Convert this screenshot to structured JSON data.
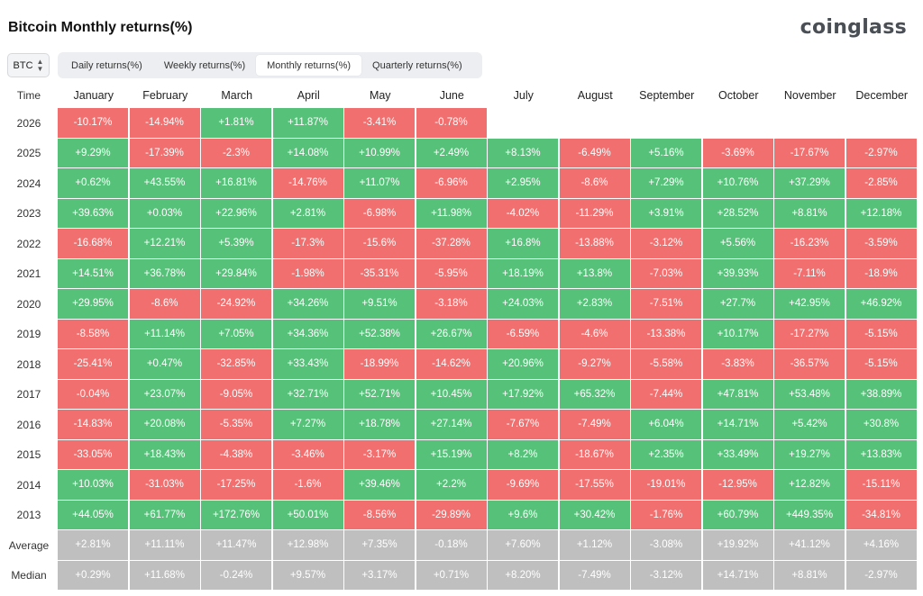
{
  "header": {
    "title": "Bitcoin Monthly returns(%)",
    "brand": "coinglass",
    "asset": "BTC"
  },
  "tabs": [
    {
      "label": "Daily returns(%)",
      "active": false
    },
    {
      "label": "Weekly returns(%)",
      "active": false
    },
    {
      "label": "Monthly returns(%)",
      "active": true
    },
    {
      "label": "Quarterly returns(%)",
      "active": false
    }
  ],
  "colors": {
    "positive": "#56c279",
    "negative": "#f26f6f",
    "summary": "#bfbfbf"
  },
  "table": {
    "time_label": "Time",
    "months": [
      "January",
      "February",
      "March",
      "April",
      "May",
      "June",
      "July",
      "August",
      "September",
      "October",
      "November",
      "December"
    ],
    "rows": [
      {
        "year": "2026",
        "values": [
          "-10.17%",
          "-14.94%",
          "+1.81%",
          "+11.87%",
          "-3.41%",
          "-0.78%",
          "",
          "",
          "",
          "",
          "",
          ""
        ]
      },
      {
        "year": "2025",
        "values": [
          "+9.29%",
          "-17.39%",
          "-2.3%",
          "+14.08%",
          "+10.99%",
          "+2.49%",
          "+8.13%",
          "-6.49%",
          "+5.16%",
          "-3.69%",
          "-17.67%",
          "-2.97%"
        ]
      },
      {
        "year": "2024",
        "values": [
          "+0.62%",
          "+43.55%",
          "+16.81%",
          "-14.76%",
          "+11.07%",
          "-6.96%",
          "+2.95%",
          "-8.6%",
          "+7.29%",
          "+10.76%",
          "+37.29%",
          "-2.85%"
        ]
      },
      {
        "year": "2023",
        "values": [
          "+39.63%",
          "+0.03%",
          "+22.96%",
          "+2.81%",
          "-6.98%",
          "+11.98%",
          "-4.02%",
          "-11.29%",
          "+3.91%",
          "+28.52%",
          "+8.81%",
          "+12.18%"
        ]
      },
      {
        "year": "2022",
        "values": [
          "-16.68%",
          "+12.21%",
          "+5.39%",
          "-17.3%",
          "-15.6%",
          "-37.28%",
          "+16.8%",
          "-13.88%",
          "-3.12%",
          "+5.56%",
          "-16.23%",
          "-3.59%"
        ]
      },
      {
        "year": "2021",
        "values": [
          "+14.51%",
          "+36.78%",
          "+29.84%",
          "-1.98%",
          "-35.31%",
          "-5.95%",
          "+18.19%",
          "+13.8%",
          "-7.03%",
          "+39.93%",
          "-7.11%",
          "-18.9%"
        ]
      },
      {
        "year": "2020",
        "values": [
          "+29.95%",
          "-8.6%",
          "-24.92%",
          "+34.26%",
          "+9.51%",
          "-3.18%",
          "+24.03%",
          "+2.83%",
          "-7.51%",
          "+27.7%",
          "+42.95%",
          "+46.92%"
        ]
      },
      {
        "year": "2019",
        "values": [
          "-8.58%",
          "+11.14%",
          "+7.05%",
          "+34.36%",
          "+52.38%",
          "+26.67%",
          "-6.59%",
          "-4.6%",
          "-13.38%",
          "+10.17%",
          "-17.27%",
          "-5.15%"
        ]
      },
      {
        "year": "2018",
        "values": [
          "-25.41%",
          "+0.47%",
          "-32.85%",
          "+33.43%",
          "-18.99%",
          "-14.62%",
          "+20.96%",
          "-9.27%",
          "-5.58%",
          "-3.83%",
          "-36.57%",
          "-5.15%"
        ]
      },
      {
        "year": "2017",
        "values": [
          "-0.04%",
          "+23.07%",
          "-9.05%",
          "+32.71%",
          "+52.71%",
          "+10.45%",
          "+17.92%",
          "+65.32%",
          "-7.44%",
          "+47.81%",
          "+53.48%",
          "+38.89%"
        ]
      },
      {
        "year": "2016",
        "values": [
          "-14.83%",
          "+20.08%",
          "-5.35%",
          "+7.27%",
          "+18.78%",
          "+27.14%",
          "-7.67%",
          "-7.49%",
          "+6.04%",
          "+14.71%",
          "+5.42%",
          "+30.8%"
        ]
      },
      {
        "year": "2015",
        "values": [
          "-33.05%",
          "+18.43%",
          "-4.38%",
          "-3.46%",
          "-3.17%",
          "+15.19%",
          "+8.2%",
          "-18.67%",
          "+2.35%",
          "+33.49%",
          "+19.27%",
          "+13.83%"
        ]
      },
      {
        "year": "2014",
        "values": [
          "+10.03%",
          "-31.03%",
          "-17.25%",
          "-1.6%",
          "+39.46%",
          "+2.2%",
          "-9.69%",
          "-17.55%",
          "-19.01%",
          "-12.95%",
          "+12.82%",
          "-15.11%"
        ]
      },
      {
        "year": "2013",
        "values": [
          "+44.05%",
          "+61.77%",
          "+172.76%",
          "+50.01%",
          "-8.56%",
          "-29.89%",
          "+9.6%",
          "+30.42%",
          "-1.76%",
          "+60.79%",
          "+449.35%",
          "-34.81%"
        ]
      }
    ],
    "summary": [
      {
        "label": "Average",
        "values": [
          "+2.81%",
          "+11.11%",
          "+11.47%",
          "+12.98%",
          "+7.35%",
          "-0.18%",
          "+7.60%",
          "+1.12%",
          "-3.08%",
          "+19.92%",
          "+41.12%",
          "+4.16%"
        ]
      },
      {
        "label": "Median",
        "values": [
          "+0.29%",
          "+11.68%",
          "-0.24%",
          "+9.57%",
          "+3.17%",
          "+0.71%",
          "+8.20%",
          "-7.49%",
          "-3.12%",
          "+14.71%",
          "+8.81%",
          "-2.97%"
        ]
      }
    ]
  }
}
